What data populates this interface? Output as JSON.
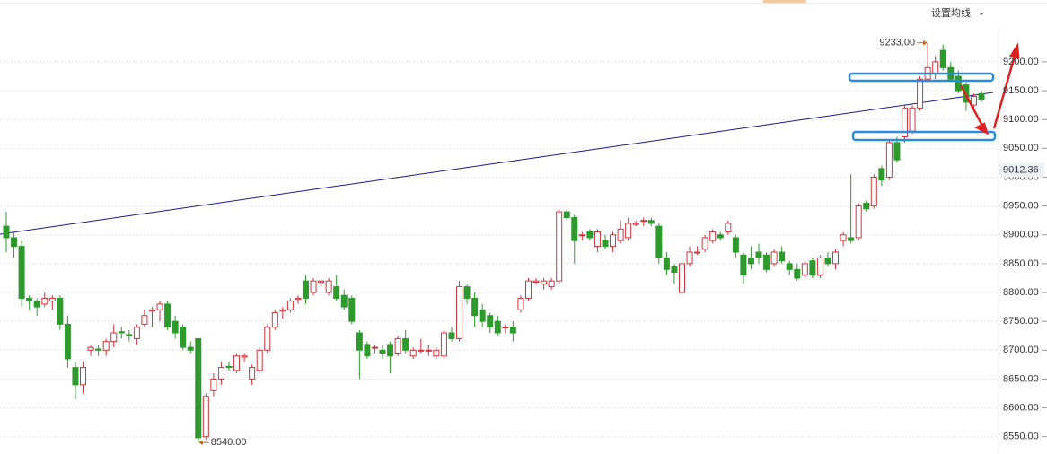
{
  "chart_data": {
    "type": "candlestick",
    "menu_label": "设置均线",
    "up_color": "#d0343c",
    "down_color": "#2e9a2e",
    "ylim": [
      8520,
      9245
    ],
    "yticks": [
      {
        "value": 8550,
        "label": "8550.00"
      },
      {
        "value": 8600,
        "label": "8600.00"
      },
      {
        "value": 8650,
        "label": "8650.00"
      },
      {
        "value": 8700,
        "label": "8700.00"
      },
      {
        "value": 8750,
        "label": "8750.00"
      },
      {
        "value": 8800,
        "label": "8800.00"
      },
      {
        "value": 8850,
        "label": "8850.00"
      },
      {
        "value": 8900,
        "label": "8900.00"
      },
      {
        "value": 8950,
        "label": "8950.00"
      },
      {
        "value": 9000,
        "label": "9000.00"
      },
      {
        "value": 9050,
        "label": "9050.00"
      },
      {
        "value": 9100,
        "label": "9100.00"
      },
      {
        "value": 9150,
        "label": "9150.00"
      },
      {
        "value": 9200,
        "label": "9200.00"
      }
    ],
    "grid": true,
    "price_label": {
      "value": 9012.36,
      "label": "9012.36"
    },
    "annotations": [
      {
        "label": "9233.00",
        "value": 9233,
        "candle": 120,
        "side": "left"
      },
      {
        "label": "8540.00",
        "value": 8540,
        "candle": 25,
        "side": "right"
      }
    ],
    "ohlc": [
      [
        8915,
        8940,
        8870,
        8895
      ],
      [
        8895,
        8905,
        8860,
        8880
      ],
      [
        8880,
        8890,
        8775,
        8790
      ],
      [
        8790,
        8795,
        8770,
        8785
      ],
      [
        8785,
        8790,
        8760,
        8775
      ],
      [
        8780,
        8800,
        8775,
        8790
      ],
      [
        8785,
        8795,
        8770,
        8790
      ],
      [
        8790,
        8795,
        8735,
        8745
      ],
      [
        8745,
        8760,
        8670,
        8685
      ],
      [
        8670,
        8680,
        8615,
        8640
      ],
      [
        8640,
        8680,
        8625,
        8670
      ],
      [
        8700,
        8710,
        8690,
        8705
      ],
      [
        8702,
        8710,
        8690,
        8700
      ],
      [
        8700,
        8720,
        8690,
        8715
      ],
      [
        8715,
        8745,
        8705,
        8730
      ],
      [
        8732,
        8740,
        8720,
        8730
      ],
      [
        8727,
        8735,
        8715,
        8725
      ],
      [
        8720,
        8745,
        8710,
        8740
      ],
      [
        8745,
        8770,
        8740,
        8760
      ],
      [
        8768,
        8775,
        8740,
        8770
      ],
      [
        8770,
        8785,
        8750,
        8780
      ],
      [
        8780,
        8785,
        8735,
        8740
      ],
      [
        8750,
        8760,
        8720,
        8730
      ],
      [
        8740,
        8745,
        8700,
        8705
      ],
      [
        8705,
        8715,
        8695,
        8700
      ],
      [
        8720,
        8720,
        8540,
        8548
      ],
      [
        8550,
        8625,
        8545,
        8620
      ],
      [
        8630,
        8660,
        8620,
        8650
      ],
      [
        8650,
        8680,
        8640,
        8670
      ],
      [
        8672,
        8680,
        8665,
        8670
      ],
      [
        8665,
        8695,
        8660,
        8690
      ],
      [
        8688,
        8695,
        8680,
        8690
      ],
      [
        8650,
        8675,
        8640,
        8670
      ],
      [
        8665,
        8705,
        8660,
        8700
      ],
      [
        8700,
        8745,
        8695,
        8740
      ],
      [
        8740,
        8770,
        8735,
        8765
      ],
      [
        8768,
        8775,
        8755,
        8770
      ],
      [
        8770,
        8790,
        8765,
        8785
      ],
      [
        8788,
        8795,
        8780,
        8790
      ],
      [
        8820,
        8830,
        8780,
        8790
      ],
      [
        8800,
        8825,
        8795,
        8820
      ],
      [
        8818,
        8825,
        8810,
        8820
      ],
      [
        8800,
        8825,
        8795,
        8820
      ],
      [
        8810,
        8830,
        8785,
        8790
      ],
      [
        8795,
        8805,
        8770,
        8775
      ],
      [
        8790,
        8795,
        8745,
        8750
      ],
      [
        8730,
        8735,
        8650,
        8700
      ],
      [
        8710,
        8715,
        8685,
        8690
      ],
      [
        8705,
        8710,
        8695,
        8705
      ],
      [
        8700,
        8710,
        8685,
        8695
      ],
      [
        8710,
        8715,
        8660,
        8690
      ],
      [
        8695,
        8725,
        8690,
        8720
      ],
      [
        8720,
        8735,
        8695,
        8700
      ],
      [
        8690,
        8705,
        8685,
        8700
      ],
      [
        8700,
        8720,
        8695,
        8700
      ],
      [
        8700,
        8710,
        8690,
        8700
      ],
      [
        8690,
        8705,
        8685,
        8700
      ],
      [
        8690,
        8735,
        8685,
        8730
      ],
      [
        8730,
        8740,
        8715,
        8720
      ],
      [
        8720,
        8820,
        8715,
        8810
      ],
      [
        8810,
        8815,
        8780,
        8790
      ],
      [
        8790,
        8800,
        8740,
        8760
      ],
      [
        8770,
        8780,
        8740,
        8750
      ],
      [
        8760,
        8765,
        8730,
        8740
      ],
      [
        8750,
        8760,
        8725,
        8730
      ],
      [
        8740,
        8745,
        8730,
        8740
      ],
      [
        8740,
        8750,
        8715,
        8730
      ],
      [
        8770,
        8795,
        8765,
        8790
      ],
      [
        8790,
        8825,
        8785,
        8820
      ],
      [
        8818,
        8825,
        8815,
        8820
      ],
      [
        8815,
        8825,
        8805,
        8820
      ],
      [
        8810,
        8825,
        8805,
        8820
      ],
      [
        8820,
        8945,
        8815,
        8940
      ],
      [
        8940,
        8945,
        8925,
        8930
      ],
      [
        8930,
        8935,
        8850,
        8890
      ],
      [
        8900,
        8905,
        8890,
        8900
      ],
      [
        8905,
        8910,
        8890,
        8895
      ],
      [
        8880,
        8910,
        8870,
        8905
      ],
      [
        8890,
        8900,
        8875,
        8880
      ],
      [
        8880,
        8905,
        8870,
        8900
      ],
      [
        8890,
        8925,
        8885,
        8910
      ],
      [
        8895,
        8930,
        8890,
        8920
      ],
      [
        8918,
        8925,
        8915,
        8920
      ],
      [
        8925,
        8930,
        8915,
        8925
      ],
      [
        8925,
        8930,
        8915,
        8920
      ],
      [
        8915,
        8920,
        8850,
        8860
      ],
      [
        8860,
        8870,
        8830,
        8840
      ],
      [
        8845,
        8850,
        8815,
        8835
      ],
      [
        8800,
        8860,
        8790,
        8850
      ],
      [
        8850,
        8880,
        8845,
        8870
      ],
      [
        8870,
        8880,
        8865,
        8870
      ],
      [
        8875,
        8900,
        8870,
        8895
      ],
      [
        8890,
        8910,
        8885,
        8905
      ],
      [
        8900,
        8905,
        8890,
        8895
      ],
      [
        8905,
        8925,
        8900,
        8920
      ],
      [
        8895,
        8900,
        8860,
        8870
      ],
      [
        8865,
        8870,
        8815,
        8830
      ],
      [
        8860,
        8880,
        8840,
        8850
      ],
      [
        8870,
        8885,
        8850,
        8860
      ],
      [
        8865,
        8870,
        8835,
        8840
      ],
      [
        8850,
        8875,
        8845,
        8870
      ],
      [
        8870,
        8880,
        8850,
        8855
      ],
      [
        8850,
        8855,
        8830,
        8840
      ],
      [
        8840,
        8850,
        8820,
        8825
      ],
      [
        8830,
        8855,
        8825,
        8850
      ],
      [
        8855,
        8860,
        8825,
        8830
      ],
      [
        8830,
        8865,
        8825,
        8860
      ],
      [
        8860,
        8870,
        8845,
        8850
      ],
      [
        8850,
        8875,
        8840,
        8870
      ],
      [
        8890,
        8905,
        8880,
        8900
      ],
      [
        8895,
        9005,
        8885,
        8890
      ],
      [
        8895,
        8955,
        8890,
        8950
      ],
      [
        8955,
        8960,
        8940,
        8945
      ],
      [
        8950,
        9005,
        8945,
        9000
      ],
      [
        9015,
        9020,
        8985,
        8995
      ],
      [
        9000,
        9065,
        8995,
        9060
      ],
      [
        9060,
        9070,
        9025,
        9030
      ],
      [
        9070,
        9125,
        9060,
        9120
      ],
      [
        9080,
        9125,
        9075,
        9120
      ],
      [
        9120,
        9175,
        9115,
        9170
      ],
      [
        9170,
        9233,
        9165,
        9190
      ],
      [
        9180,
        9210,
        9170,
        9200
      ],
      [
        9220,
        9230,
        9185,
        9190
      ],
      [
        9190,
        9200,
        9165,
        9170
      ],
      [
        9175,
        9185,
        9145,
        9150
      ],
      [
        9160,
        9165,
        9115,
        9130
      ],
      [
        9125,
        9145,
        9120,
        9140
      ],
      [
        9145,
        9150,
        9130,
        9135
      ]
    ]
  }
}
